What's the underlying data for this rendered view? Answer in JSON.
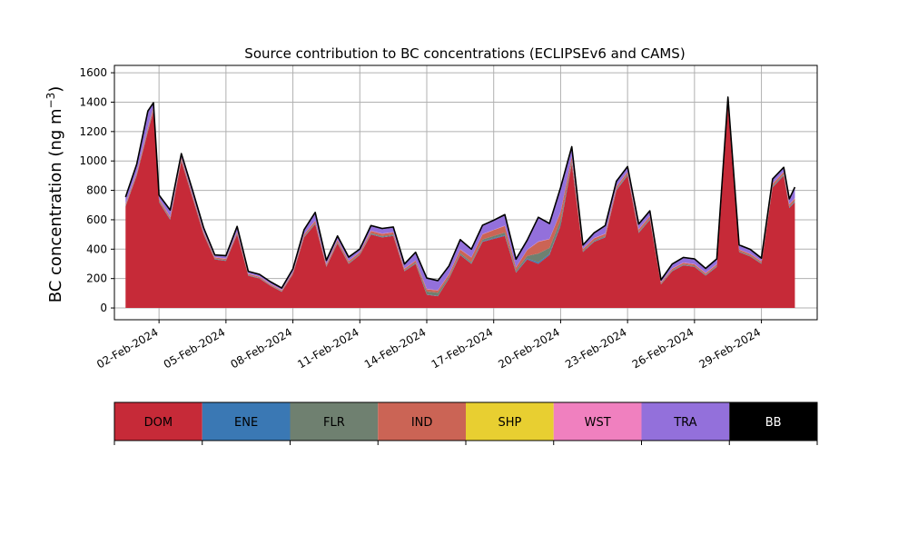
{
  "chart_data": {
    "type": "area",
    "title": "Source contribution to BC concentrations (ECLIPSEv6 and CAMS)",
    "xlabel": "",
    "ylabel": "BC concentration (ng m",
    "ylabel_superscript": "−3",
    "ylabel_suffix": ")",
    "ylim": [
      -80,
      1650
    ],
    "yticks": [
      0,
      200,
      400,
      600,
      800,
      1000,
      1200,
      1400,
      1600
    ],
    "xlim": [
      "2024-01-31T00:00",
      "2024-03-02T12:00"
    ],
    "xticks": [
      "2024-02-02",
      "2024-02-05",
      "2024-02-08",
      "2024-02-11",
      "2024-02-14",
      "2024-02-17",
      "2024-02-20",
      "2024-02-23",
      "2024-02-26",
      "2024-02-29"
    ],
    "xtick_labels": [
      "02-Feb-2024",
      "05-Feb-2024",
      "08-Feb-2024",
      "11-Feb-2024",
      "14-Feb-2024",
      "17-Feb-2024",
      "20-Feb-2024",
      "23-Feb-2024",
      "26-Feb-2024",
      "29-Feb-2024"
    ],
    "grid": true,
    "legend_position": "bottom",
    "x": [
      "2024-01-31T12:00",
      "2024-02-01T00:00",
      "2024-02-01T12:00",
      "2024-02-01T18:00",
      "2024-02-02T00:00",
      "2024-02-02T12:00",
      "2024-02-03T00:00",
      "2024-02-03T12:00",
      "2024-02-04T00:00",
      "2024-02-04T12:00",
      "2024-02-05T00:00",
      "2024-02-05T12:00",
      "2024-02-06T00:00",
      "2024-02-06T12:00",
      "2024-02-07T00:00",
      "2024-02-07T12:00",
      "2024-02-08T00:00",
      "2024-02-08T12:00",
      "2024-02-09T00:00",
      "2024-02-09T12:00",
      "2024-02-10T00:00",
      "2024-02-10T12:00",
      "2024-02-11T00:00",
      "2024-02-11T12:00",
      "2024-02-12T00:00",
      "2024-02-12T12:00",
      "2024-02-13T00:00",
      "2024-02-13T12:00",
      "2024-02-14T00:00",
      "2024-02-14T12:00",
      "2024-02-15T00:00",
      "2024-02-15T12:00",
      "2024-02-16T00:00",
      "2024-02-16T12:00",
      "2024-02-17T00:00",
      "2024-02-17T12:00",
      "2024-02-18T00:00",
      "2024-02-18T12:00",
      "2024-02-19T00:00",
      "2024-02-19T12:00",
      "2024-02-20T00:00",
      "2024-02-20T12:00",
      "2024-02-21T00:00",
      "2024-02-21T12:00",
      "2024-02-22T00:00",
      "2024-02-22T12:00",
      "2024-02-23T00:00",
      "2024-02-23T12:00",
      "2024-02-24T00:00",
      "2024-02-24T12:00",
      "2024-02-25T00:00",
      "2024-02-25T12:00",
      "2024-02-26T00:00",
      "2024-02-26T12:00",
      "2024-02-27T00:00",
      "2024-02-27T12:00",
      "2024-02-28T00:00",
      "2024-02-28T12:00",
      "2024-02-29T00:00",
      "2024-02-29T12:00",
      "2024-03-01T00:00",
      "2024-03-01T06:00",
      "2024-03-01T12:00"
    ],
    "series": [
      {
        "name": "DOM",
        "color": "#c62a38",
        "values": [
          690,
          900,
          1200,
          1340,
          720,
          600,
          1000,
          750,
          500,
          330,
          320,
          500,
          220,
          200,
          150,
          110,
          230,
          480,
          570,
          280,
          440,
          300,
          360,
          500,
          480,
          490,
          250,
          300,
          90,
          80,
          200,
          360,
          300,
          450,
          470,
          490,
          240,
          330,
          300,
          360,
          560,
          980,
          380,
          450,
          480,
          800,
          900,
          510,
          600,
          160,
          250,
          290,
          280,
          220,
          280,
          1380,
          380,
          350,
          300,
          820,
          900,
          680,
          720
        ]
      },
      {
        "name": "ENE",
        "color": "#3a78b4",
        "values": [
          3,
          3,
          4,
          4,
          3,
          3,
          3,
          3,
          3,
          2,
          2,
          3,
          2,
          2,
          2,
          2,
          2,
          3,
          3,
          2,
          3,
          2,
          2,
          3,
          3,
          3,
          2,
          2,
          2,
          2,
          2,
          3,
          3,
          4,
          5,
          5,
          3,
          6,
          10,
          8,
          8,
          5,
          3,
          3,
          3,
          4,
          4,
          3,
          3,
          2,
          2,
          2,
          2,
          2,
          2,
          4,
          2,
          2,
          2,
          4,
          4,
          4,
          4
        ]
      },
      {
        "name": "FLR",
        "color": "#6f8070",
        "values": [
          5,
          6,
          8,
          8,
          6,
          5,
          6,
          5,
          5,
          4,
          4,
          5,
          3,
          3,
          3,
          3,
          4,
          5,
          6,
          5,
          6,
          5,
          5,
          6,
          6,
          6,
          5,
          8,
          20,
          22,
          10,
          10,
          10,
          12,
          15,
          18,
          12,
          18,
          60,
          40,
          30,
          15,
          6,
          6,
          6,
          6,
          6,
          6,
          6,
          4,
          5,
          5,
          5,
          5,
          5,
          8,
          5,
          5,
          5,
          6,
          6,
          6,
          6
        ]
      },
      {
        "name": "IND",
        "color": "#cb6455",
        "values": [
          10,
          12,
          15,
          16,
          12,
          11,
          14,
          12,
          10,
          8,
          8,
          10,
          7,
          7,
          6,
          6,
          8,
          12,
          14,
          10,
          14,
          12,
          12,
          15,
          15,
          15,
          10,
          12,
          15,
          15,
          18,
          25,
          30,
          35,
          40,
          45,
          20,
          40,
          80,
          60,
          55,
          30,
          12,
          15,
          15,
          15,
          15,
          15,
          15,
          8,
          10,
          10,
          10,
          10,
          10,
          15,
          10,
          10,
          10,
          15,
          15,
          15,
          15
        ]
      },
      {
        "name": "SHP",
        "color": "#e8cf31",
        "values": [
          0,
          0,
          0,
          0,
          0,
          0,
          0,
          0,
          0,
          0,
          0,
          0,
          0,
          0,
          0,
          0,
          0,
          0,
          0,
          0,
          0,
          0,
          0,
          0,
          0,
          0,
          0,
          0,
          0,
          0,
          0,
          0,
          0,
          0,
          0,
          0,
          0,
          0,
          0,
          0,
          0,
          0,
          0,
          0,
          0,
          0,
          0,
          0,
          0,
          0,
          0,
          0,
          0,
          0,
          0,
          0,
          0,
          0,
          0,
          0,
          0,
          0,
          0
        ]
      },
      {
        "name": "WST",
        "color": "#f080bf",
        "values": [
          2,
          2,
          3,
          3,
          2,
          2,
          2,
          2,
          2,
          2,
          2,
          2,
          2,
          2,
          2,
          2,
          2,
          2,
          2,
          2,
          2,
          2,
          2,
          2,
          2,
          2,
          2,
          2,
          2,
          2,
          2,
          2,
          2,
          2,
          2,
          2,
          2,
          2,
          2,
          2,
          2,
          2,
          2,
          2,
          2,
          2,
          2,
          2,
          2,
          2,
          2,
          2,
          2,
          2,
          2,
          2,
          2,
          2,
          2,
          2,
          2,
          2,
          2
        ]
      },
      {
        "name": "TRA",
        "color": "#9370db",
        "values": [
          40,
          50,
          100,
          20,
          20,
          40,
          20,
          25,
          20,
          10,
          15,
          30,
          10,
          10,
          10,
          8,
          15,
          25,
          50,
          20,
          20,
          20,
          15,
          30,
          30,
          30,
          25,
          50,
          70,
          60,
          50,
          60,
          50,
          55,
          60,
          70,
          50,
          60,
          160,
          100,
          160,
          60,
          20,
          30,
          50,
          30,
          30,
          30,
          30,
          10,
          25,
          30,
          30,
          25,
          30,
          20,
          25,
          25,
          15,
          25,
          25,
          30,
          70
        ]
      },
      {
        "name": "BB",
        "color": "#000000",
        "values": [
          5,
          5,
          10,
          5,
          5,
          5,
          5,
          5,
          5,
          5,
          5,
          5,
          5,
          5,
          5,
          5,
          5,
          5,
          5,
          5,
          5,
          5,
          5,
          5,
          5,
          5,
          5,
          5,
          5,
          5,
          5,
          5,
          5,
          5,
          5,
          5,
          5,
          5,
          5,
          5,
          5,
          5,
          5,
          5,
          5,
          5,
          5,
          5,
          5,
          5,
          5,
          5,
          5,
          5,
          5,
          5,
          5,
          5,
          5,
          5,
          5,
          5,
          5
        ]
      }
    ],
    "legend_entries": [
      {
        "label": "DOM",
        "color": "#c62a38",
        "text_color": "#000000"
      },
      {
        "label": "ENE",
        "color": "#3a78b4",
        "text_color": "#000000"
      },
      {
        "label": "FLR",
        "color": "#6f8070",
        "text_color": "#000000"
      },
      {
        "label": "IND",
        "color": "#cb6455",
        "text_color": "#000000"
      },
      {
        "label": "SHP",
        "color": "#e8cf31",
        "text_color": "#000000"
      },
      {
        "label": "WST",
        "color": "#f080bf",
        "text_color": "#000000"
      },
      {
        "label": "TRA",
        "color": "#9370db",
        "text_color": "#000000"
      },
      {
        "label": "BB",
        "color": "#000000",
        "text_color": "#ffffff"
      }
    ]
  }
}
